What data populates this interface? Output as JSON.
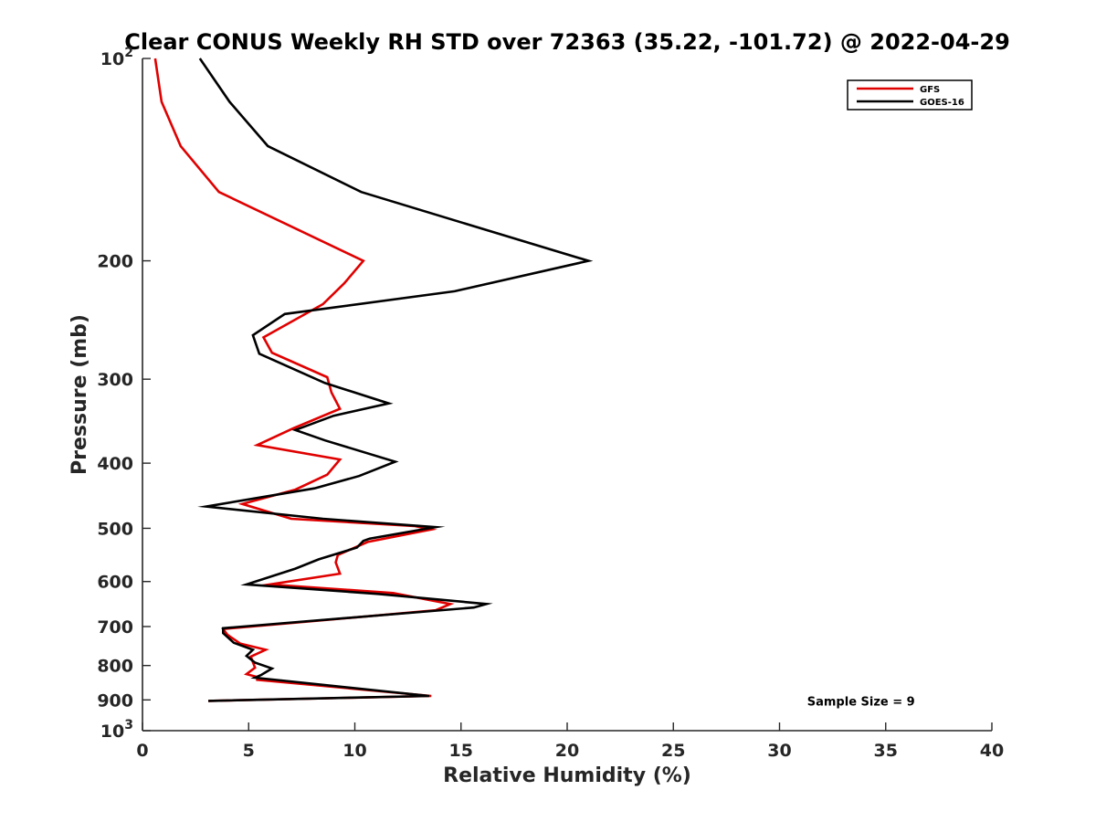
{
  "chart_data": {
    "type": "line",
    "title": "Clear CONUS Weekly RH STD over 72363 (35.22, -101.72) @ 2022-04-29",
    "xlabel": "Relative Humidity (%)",
    "ylabel": "Pressure (mb)",
    "xlim": [
      0,
      40
    ],
    "ylim": [
      100,
      1000
    ],
    "yscale": "log",
    "y_reversed": true,
    "grid": false,
    "legend_position": "top-right",
    "x_ticks": [
      {
        "value": 0,
        "label": "0"
      },
      {
        "value": 5,
        "label": "5"
      },
      {
        "value": 10,
        "label": "10"
      },
      {
        "value": 15,
        "label": "15"
      },
      {
        "value": 20,
        "label": "20"
      },
      {
        "value": 25,
        "label": "25"
      },
      {
        "value": 30,
        "label": "30"
      },
      {
        "value": 35,
        "label": "35"
      },
      {
        "value": 40,
        "label": "40"
      }
    ],
    "y_ticks": [
      {
        "value": 100,
        "base": "10",
        "exp": "2"
      },
      {
        "value": 200,
        "label": "200"
      },
      {
        "value": 300,
        "label": "300"
      },
      {
        "value": 400,
        "label": "400"
      },
      {
        "value": 500,
        "label": "500"
      },
      {
        "value": 600,
        "label": "600"
      },
      {
        "value": 700,
        "label": "700"
      },
      {
        "value": 800,
        "label": "800"
      },
      {
        "value": 900,
        "label": "900"
      },
      {
        "value": 1000,
        "base": "10",
        "exp": "3"
      }
    ],
    "series": [
      {
        "name": "GFS",
        "color": "#e00000",
        "points": [
          [
            0.6,
            100
          ],
          [
            0.9,
            116
          ],
          [
            1.8,
            135
          ],
          [
            3.6,
            158
          ],
          [
            10.4,
            200
          ],
          [
            9.5,
            216
          ],
          [
            8.5,
            232
          ],
          [
            5.7,
            260
          ],
          [
            6.1,
            274
          ],
          [
            8.7,
            298
          ],
          [
            8.9,
            314
          ],
          [
            9.3,
            332
          ],
          [
            7.1,
            355
          ],
          [
            5.4,
            376
          ],
          [
            9.3,
            395
          ],
          [
            8.7,
            416
          ],
          [
            7.2,
            438
          ],
          [
            4.7,
            460
          ],
          [
            7.0,
            484
          ],
          [
            12.8,
            496
          ],
          [
            13.6,
            502
          ],
          [
            10.6,
            524
          ],
          [
            9.2,
            548
          ],
          [
            9.1,
            562
          ],
          [
            9.3,
            584
          ],
          [
            6.0,
            606
          ],
          [
            11.8,
            624
          ],
          [
            14.5,
            648
          ],
          [
            13.8,
            662
          ],
          [
            3.8,
            706
          ],
          [
            4.0,
            720
          ],
          [
            4.6,
            742
          ],
          [
            5.8,
            758
          ],
          [
            5.1,
            776
          ],
          [
            5.3,
            806
          ],
          [
            4.9,
            824
          ],
          [
            5.4,
            832
          ],
          [
            5.4,
            840
          ],
          [
            13.6,
            888
          ],
          [
            3.1,
            903
          ]
        ]
      },
      {
        "name": "GOES-16",
        "color": "#000000",
        "points": [
          [
            2.7,
            100
          ],
          [
            4.1,
            116
          ],
          [
            5.9,
            135
          ],
          [
            10.3,
            158
          ],
          [
            16.7,
            182
          ],
          [
            21.0,
            200
          ],
          [
            14.7,
            222
          ],
          [
            6.7,
            240
          ],
          [
            5.2,
            258
          ],
          [
            5.5,
            275
          ],
          [
            8.6,
            304
          ],
          [
            11.6,
            326
          ],
          [
            9.0,
            340
          ],
          [
            7.2,
            357
          ],
          [
            8.6,
            370
          ],
          [
            11.9,
            398
          ],
          [
            10.2,
            418
          ],
          [
            8.1,
            436
          ],
          [
            3.0,
            464
          ],
          [
            8.5,
            484
          ],
          [
            13.8,
            498
          ],
          [
            10.7,
            518
          ],
          [
            10.4,
            522
          ],
          [
            10.1,
            534
          ],
          [
            8.3,
            556
          ],
          [
            7.2,
            574
          ],
          [
            4.9,
            606
          ],
          [
            11.1,
            626
          ],
          [
            16.2,
            648
          ],
          [
            15.6,
            656
          ],
          [
            3.8,
            704
          ],
          [
            3.8,
            716
          ],
          [
            4.3,
            740
          ],
          [
            5.2,
            758
          ],
          [
            4.9,
            774
          ],
          [
            5.3,
            792
          ],
          [
            6.1,
            808
          ],
          [
            5.6,
            826
          ],
          [
            5.3,
            834
          ],
          [
            13.5,
            888
          ],
          [
            3.1,
            903
          ]
        ]
      }
    ],
    "annotations": [
      {
        "text": "Sample Size = 9",
        "x": 35,
        "y": 903
      }
    ]
  }
}
